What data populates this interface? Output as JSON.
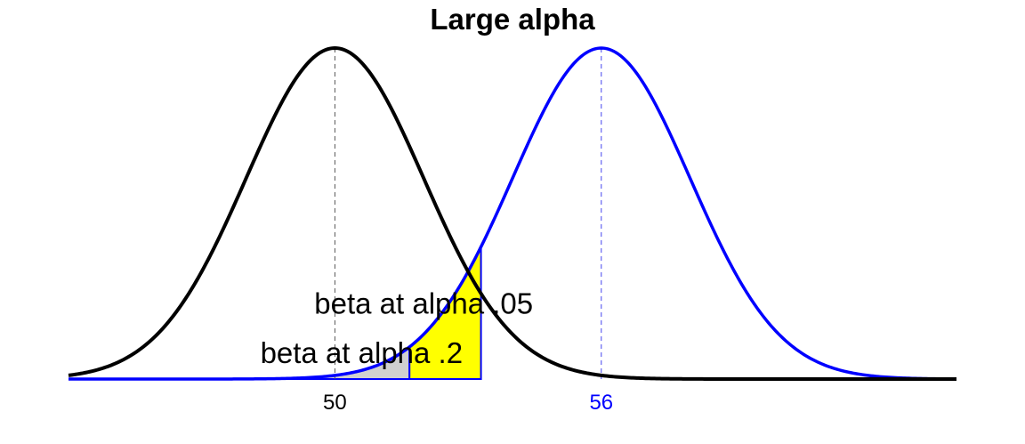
{
  "chart_data": {
    "type": "area",
    "title": "Large alpha",
    "xlabel": "",
    "ylabel": "",
    "xlim": [
      44,
      64
    ],
    "series": [
      {
        "mean": 50,
        "sd": 2,
        "color": "#000000"
      },
      {
        "mean": 56,
        "sd": 2,
        "color": "#0000ff"
      }
    ],
    "reference_lines": [
      {
        "x": 50,
        "color": "#555555"
      },
      {
        "x": 56,
        "color": "#4444ee"
      }
    ],
    "shaded_regions": [
      {
        "under_series": 1,
        "from": 44,
        "to": 51.68,
        "fill": "#d0d0d0",
        "stroke": "#0000ff"
      },
      {
        "under_series": 1,
        "from": 51.68,
        "to": 53.29,
        "fill": "#ffff00",
        "stroke": "#0000ff"
      }
    ],
    "annotations": [
      {
        "text": "beta at alpha .05",
        "x": 52.0,
        "y_rel": 0.23
      },
      {
        "text": "beta at alpha .2",
        "x": 50.6,
        "y_rel": 0.08
      }
    ],
    "x_ticks": [
      {
        "value": 50,
        "label": "50",
        "color": "#000000"
      },
      {
        "value": 56,
        "label": "56",
        "color": "#0000ff"
      }
    ],
    "grid": false,
    "legend": "none"
  }
}
